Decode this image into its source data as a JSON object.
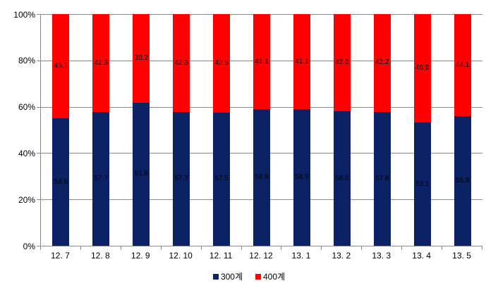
{
  "chart_data": {
    "type": "bar",
    "stacked": true,
    "percent_stacked": true,
    "title": "",
    "xlabel": "",
    "ylabel": "",
    "ylim": [
      0,
      100
    ],
    "grid": true,
    "legend_position": "bottom",
    "categories": [
      "12. 7",
      "12. 8",
      "12. 9",
      "12. 10",
      "12. 11",
      "12. 12",
      "13. 1",
      "13. 2",
      "13. 3",
      "13. 4",
      "13. 5"
    ],
    "y_ticks": [
      {
        "value": 0,
        "label": "0%"
      },
      {
        "value": 20,
        "label": "20%"
      },
      {
        "value": 40,
        "label": "40%"
      },
      {
        "value": 60,
        "label": "60%"
      },
      {
        "value": 80,
        "label": "80%"
      },
      {
        "value": 100,
        "label": "100%"
      }
    ],
    "series": [
      {
        "name": "300계",
        "color": "#0b2364",
        "values": [
          54.9,
          57.7,
          61.8,
          57.7,
          57.5,
          58.9,
          58.9,
          58.0,
          57.8,
          53.1,
          55.9
        ],
        "labels": [
          "54.9",
          "57.7",
          "61.8",
          "57.7",
          "57.5",
          "58.9",
          "58.9",
          "58.0",
          "57.8",
          "53.1",
          "55.9"
        ]
      },
      {
        "name": "400계",
        "color": "#fe0000",
        "values": [
          45.1,
          42.3,
          38.2,
          42.3,
          42.5,
          41.1,
          41.1,
          42.0,
          42.2,
          46.9,
          44.1
        ],
        "labels": [
          "45.1",
          "42.3",
          "38.2",
          "42.3",
          "42.5",
          "41.1",
          "41.1",
          "42.0",
          "42.2",
          "46.9",
          "44.1"
        ]
      }
    ],
    "colors": {
      "grid": "#8a8a8a",
      "axis": "#8a8a8a",
      "data_label": "#000000",
      "background": "#ffffff"
    }
  }
}
